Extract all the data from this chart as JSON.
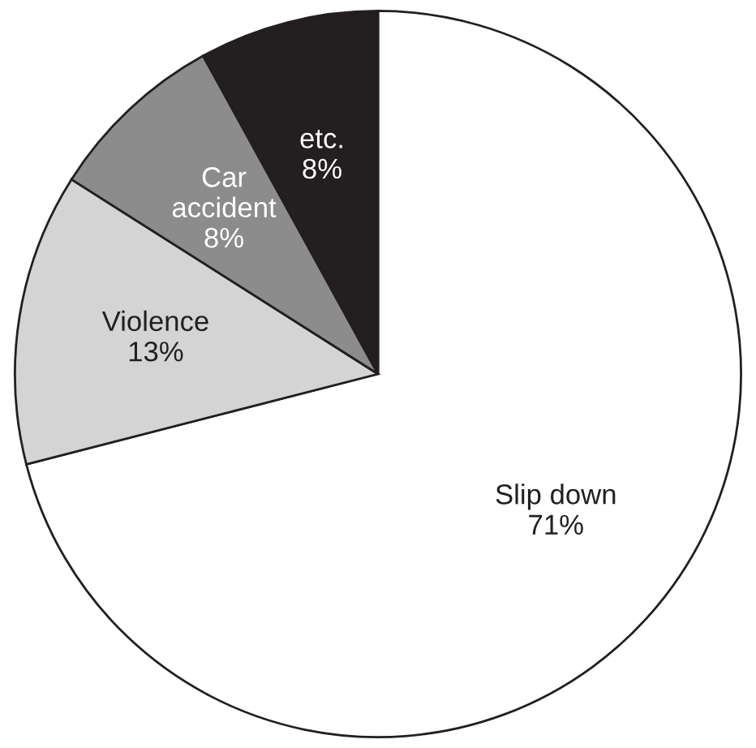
{
  "chart_data": {
    "type": "pie",
    "categories": [
      "Slip down",
      "Violence",
      "Car\naccident",
      "etc."
    ],
    "values": [
      71,
      13,
      8,
      8
    ],
    "colors": [
      "#ffffff",
      "#d4d4d4",
      "#8c8c8c",
      "#231f20"
    ],
    "value_labels": [
      "71%",
      "13%",
      "8%",
      "8%"
    ]
  }
}
